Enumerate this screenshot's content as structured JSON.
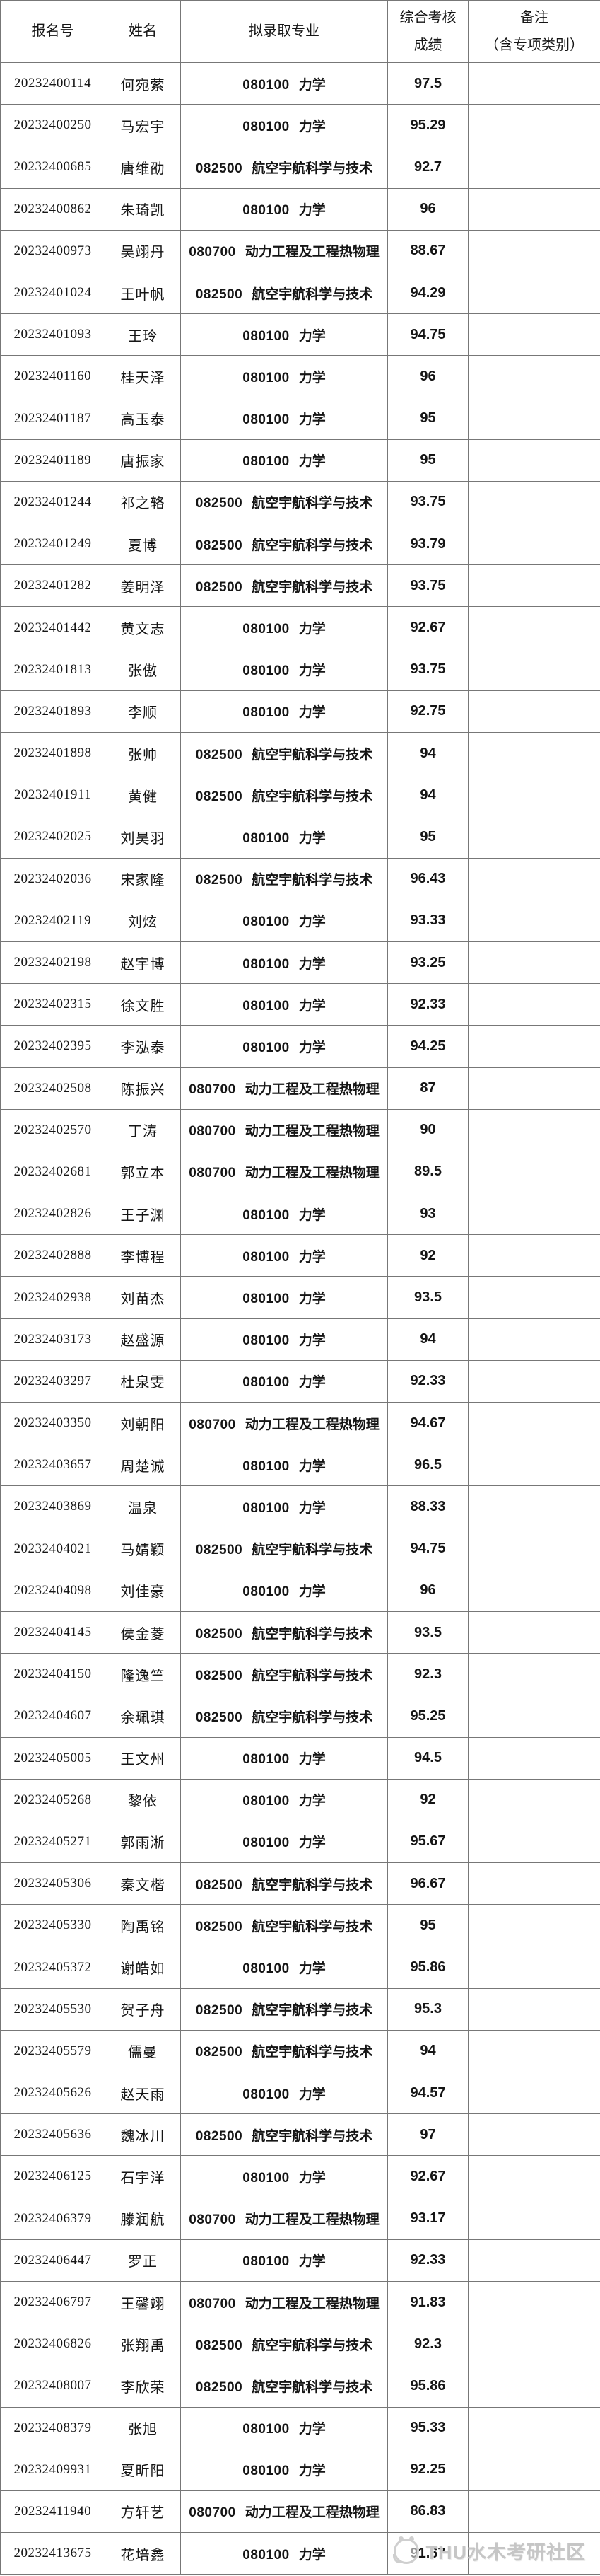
{
  "watermark": {
    "text": "THU水木考研社区",
    "icon": "community-circle-logo",
    "color": "#c6c6c6"
  },
  "table": {
    "columns": [
      {
        "key": "id",
        "label": "报名号"
      },
      {
        "key": "name",
        "label": "姓名"
      },
      {
        "key": "major",
        "label": "拟录取专业"
      },
      {
        "key": "score",
        "label": "综合考核\n成绩"
      },
      {
        "key": "remark",
        "label": "备注\n（含专项类别）"
      }
    ],
    "majors": {
      "080100": "力学",
      "080700": "动力工程及工程热物理",
      "082500": "航空宇航科学与技术"
    },
    "rows": [
      {
        "id": "20232400114",
        "name": "何宛萦",
        "major_code": "080100",
        "major_name": "力学",
        "score": "97.5",
        "remark": ""
      },
      {
        "id": "20232400250",
        "name": "马宏宇",
        "major_code": "080100",
        "major_name": "力学",
        "score": "95.29",
        "remark": ""
      },
      {
        "id": "20232400685",
        "name": "唐维劭",
        "major_code": "082500",
        "major_name": "航空宇航科学与技术",
        "score": "92.7",
        "remark": ""
      },
      {
        "id": "20232400862",
        "name": "朱琦凯",
        "major_code": "080100",
        "major_name": "力学",
        "score": "96",
        "remark": ""
      },
      {
        "id": "20232400973",
        "name": "吴翊丹",
        "major_code": "080700",
        "major_name": "动力工程及工程热物理",
        "score": "88.67",
        "remark": ""
      },
      {
        "id": "20232401024",
        "name": "王叶帆",
        "major_code": "082500",
        "major_name": "航空宇航科学与技术",
        "score": "94.29",
        "remark": ""
      },
      {
        "id": "20232401093",
        "name": "王玲",
        "major_code": "080100",
        "major_name": "力学",
        "score": "94.75",
        "remark": ""
      },
      {
        "id": "20232401160",
        "name": "桂天泽",
        "major_code": "080100",
        "major_name": "力学",
        "score": "96",
        "remark": ""
      },
      {
        "id": "20232401187",
        "name": "高玉泰",
        "major_code": "080100",
        "major_name": "力学",
        "score": "95",
        "remark": ""
      },
      {
        "id": "20232401189",
        "name": "唐振家",
        "major_code": "080100",
        "major_name": "力学",
        "score": "95",
        "remark": ""
      },
      {
        "id": "20232401244",
        "name": "祁之辂",
        "major_code": "082500",
        "major_name": "航空宇航科学与技术",
        "score": "93.75",
        "remark": ""
      },
      {
        "id": "20232401249",
        "name": "夏博",
        "major_code": "082500",
        "major_name": "航空宇航科学与技术",
        "score": "93.79",
        "remark": ""
      },
      {
        "id": "20232401282",
        "name": "姜明泽",
        "major_code": "082500",
        "major_name": "航空宇航科学与技术",
        "score": "93.75",
        "remark": ""
      },
      {
        "id": "20232401442",
        "name": "黄文志",
        "major_code": "080100",
        "major_name": "力学",
        "score": "92.67",
        "remark": ""
      },
      {
        "id": "20232401813",
        "name": "张傲",
        "major_code": "080100",
        "major_name": "力学",
        "score": "93.75",
        "remark": ""
      },
      {
        "id": "20232401893",
        "name": "李顺",
        "major_code": "080100",
        "major_name": "力学",
        "score": "92.75",
        "remark": ""
      },
      {
        "id": "20232401898",
        "name": "张帅",
        "major_code": "082500",
        "major_name": "航空宇航科学与技术",
        "score": "94",
        "remark": ""
      },
      {
        "id": "20232401911",
        "name": "黄健",
        "major_code": "082500",
        "major_name": "航空宇航科学与技术",
        "score": "94",
        "remark": ""
      },
      {
        "id": "20232402025",
        "name": "刘昊羽",
        "major_code": "080100",
        "major_name": "力学",
        "score": "95",
        "remark": ""
      },
      {
        "id": "20232402036",
        "name": "宋家隆",
        "major_code": "082500",
        "major_name": "航空宇航科学与技术",
        "score": "96.43",
        "remark": ""
      },
      {
        "id": "20232402119",
        "name": "刘炫",
        "major_code": "080100",
        "major_name": "力学",
        "score": "93.33",
        "remark": ""
      },
      {
        "id": "20232402198",
        "name": "赵宇博",
        "major_code": "080100",
        "major_name": "力学",
        "score": "93.25",
        "remark": ""
      },
      {
        "id": "20232402315",
        "name": "徐文胜",
        "major_code": "080100",
        "major_name": "力学",
        "score": "92.33",
        "remark": ""
      },
      {
        "id": "20232402395",
        "name": "李泓泰",
        "major_code": "080100",
        "major_name": "力学",
        "score": "94.25",
        "remark": ""
      },
      {
        "id": "20232402508",
        "name": "陈振兴",
        "major_code": "080700",
        "major_name": "动力工程及工程热物理",
        "score": "87",
        "remark": ""
      },
      {
        "id": "20232402570",
        "name": "丁涛",
        "major_code": "080700",
        "major_name": "动力工程及工程热物理",
        "score": "90",
        "remark": ""
      },
      {
        "id": "20232402681",
        "name": "郭立本",
        "major_code": "080700",
        "major_name": "动力工程及工程热物理",
        "score": "89.5",
        "remark": ""
      },
      {
        "id": "20232402826",
        "name": "王子渊",
        "major_code": "080100",
        "major_name": "力学",
        "score": "93",
        "remark": ""
      },
      {
        "id": "20232402888",
        "name": "李博程",
        "major_code": "080100",
        "major_name": "力学",
        "score": "92",
        "remark": ""
      },
      {
        "id": "20232402938",
        "name": "刘苗杰",
        "major_code": "080100",
        "major_name": "力学",
        "score": "93.5",
        "remark": ""
      },
      {
        "id": "20232403173",
        "name": "赵盛源",
        "major_code": "080100",
        "major_name": "力学",
        "score": "94",
        "remark": ""
      },
      {
        "id": "20232403297",
        "name": "杜泉雯",
        "major_code": "080100",
        "major_name": "力学",
        "score": "92.33",
        "remark": ""
      },
      {
        "id": "20232403350",
        "name": "刘朝阳",
        "major_code": "080700",
        "major_name": "动力工程及工程热物理",
        "score": "94.67",
        "remark": ""
      },
      {
        "id": "20232403657",
        "name": "周楚诚",
        "major_code": "080100",
        "major_name": "力学",
        "score": "96.5",
        "remark": ""
      },
      {
        "id": "20232403869",
        "name": "温泉",
        "major_code": "080100",
        "major_name": "力学",
        "score": "88.33",
        "remark": ""
      },
      {
        "id": "20232404021",
        "name": "马婧颖",
        "major_code": "082500",
        "major_name": "航空宇航科学与技术",
        "score": "94.75",
        "remark": ""
      },
      {
        "id": "20232404098",
        "name": "刘佳豪",
        "major_code": "080100",
        "major_name": "力学",
        "score": "96",
        "remark": ""
      },
      {
        "id": "20232404145",
        "name": "侯金菱",
        "major_code": "082500",
        "major_name": "航空宇航科学与技术",
        "score": "93.5",
        "remark": ""
      },
      {
        "id": "20232404150",
        "name": "隆逸竺",
        "major_code": "082500",
        "major_name": "航空宇航科学与技术",
        "score": "92.3",
        "remark": ""
      },
      {
        "id": "20232404607",
        "name": "余珮琪",
        "major_code": "082500",
        "major_name": "航空宇航科学与技术",
        "score": "95.25",
        "remark": ""
      },
      {
        "id": "20232405005",
        "name": "王文州",
        "major_code": "080100",
        "major_name": "力学",
        "score": "94.5",
        "remark": ""
      },
      {
        "id": "20232405268",
        "name": "黎依",
        "major_code": "080100",
        "major_name": "力学",
        "score": "92",
        "remark": ""
      },
      {
        "id": "20232405271",
        "name": "郭雨淅",
        "major_code": "080100",
        "major_name": "力学",
        "score": "95.67",
        "remark": ""
      },
      {
        "id": "20232405306",
        "name": "秦文楷",
        "major_code": "082500",
        "major_name": "航空宇航科学与技术",
        "score": "96.67",
        "remark": ""
      },
      {
        "id": "20232405330",
        "name": "陶禹铭",
        "major_code": "082500",
        "major_name": "航空宇航科学与技术",
        "score": "95",
        "remark": ""
      },
      {
        "id": "20232405372",
        "name": "谢皓如",
        "major_code": "080100",
        "major_name": "力学",
        "score": "95.86",
        "remark": ""
      },
      {
        "id": "20232405530",
        "name": "贺子舟",
        "major_code": "082500",
        "major_name": "航空宇航科学与技术",
        "score": "95.3",
        "remark": ""
      },
      {
        "id": "20232405579",
        "name": "儒曼",
        "major_code": "082500",
        "major_name": "航空宇航科学与技术",
        "score": "94",
        "remark": ""
      },
      {
        "id": "20232405626",
        "name": "赵天雨",
        "major_code": "080100",
        "major_name": "力学",
        "score": "94.57",
        "remark": ""
      },
      {
        "id": "20232405636",
        "name": "魏冰川",
        "major_code": "082500",
        "major_name": "航空宇航科学与技术",
        "score": "97",
        "remark": ""
      },
      {
        "id": "20232406125",
        "name": "石宇洋",
        "major_code": "080100",
        "major_name": "力学",
        "score": "92.67",
        "remark": ""
      },
      {
        "id": "20232406379",
        "name": "滕润航",
        "major_code": "080700",
        "major_name": "动力工程及工程热物理",
        "score": "93.17",
        "remark": ""
      },
      {
        "id": "20232406447",
        "name": "罗正",
        "major_code": "080100",
        "major_name": "力学",
        "score": "92.33",
        "remark": ""
      },
      {
        "id": "20232406797",
        "name": "王馨翊",
        "major_code": "080700",
        "major_name": "动力工程及工程热物理",
        "score": "91.83",
        "remark": ""
      },
      {
        "id": "20232406826",
        "name": "张翔禹",
        "major_code": "082500",
        "major_name": "航空宇航科学与技术",
        "score": "92.3",
        "remark": ""
      },
      {
        "id": "20232408007",
        "name": "李欣荣",
        "major_code": "082500",
        "major_name": "航空宇航科学与技术",
        "score": "95.86",
        "remark": ""
      },
      {
        "id": "20232408379",
        "name": "张旭",
        "major_code": "080100",
        "major_name": "力学",
        "score": "95.33",
        "remark": ""
      },
      {
        "id": "20232409931",
        "name": "夏昕阳",
        "major_code": "080100",
        "major_name": "力学",
        "score": "92.25",
        "remark": ""
      },
      {
        "id": "20232411940",
        "name": "方轩艺",
        "major_code": "080700",
        "major_name": "动力工程及工程热物理",
        "score": "86.83",
        "remark": ""
      },
      {
        "id": "20232413675",
        "name": "花培鑫",
        "major_code": "080100",
        "major_name": "力学",
        "score": "91.67",
        "remark": ""
      }
    ]
  }
}
